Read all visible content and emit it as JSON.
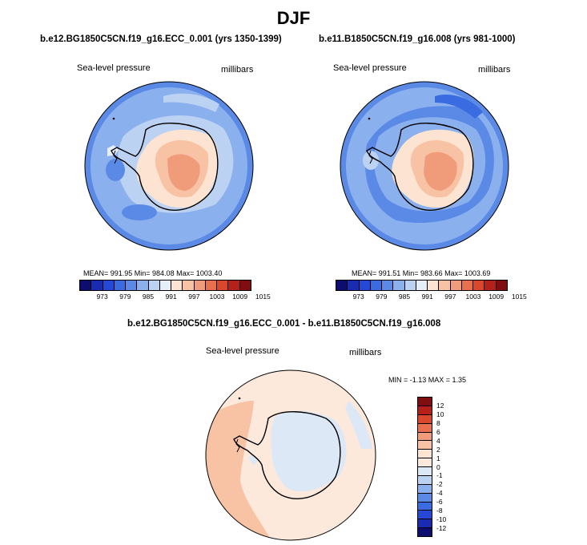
{
  "page": {
    "title": "DJF",
    "diff_title": "b.e12.BG1850C5CN.f19_g16.ECC_0.001 - b.e11.B1850C5CN.f19_g16.008"
  },
  "chart_data": [
    {
      "type": "heatmap",
      "title": "b.e12.BG1850C5CN.f19_g16.ECC_0.001 (yrs 1350-1399)",
      "variable": "Sea-level pressure",
      "units": "millibars",
      "stats": "MEAN= 991.95   Min= 984.08   Max= 1003.40",
      "mean": 991.95,
      "min": 984.08,
      "max": 1003.4,
      "colorbar_ticks": [
        "973",
        "979",
        "985",
        "991",
        "997",
        "1003",
        "1009",
        "1015"
      ]
    },
    {
      "type": "heatmap",
      "title": "b.e11.B1850C5CN.f19_g16.008 (yrs 981-1000)",
      "variable": "Sea-level pressure",
      "units": "millibars",
      "stats": "MEAN= 991.51   Min= 983.66   Max= 1003.69",
      "mean": 991.51,
      "min": 983.66,
      "max": 1003.69,
      "colorbar_ticks": [
        "973",
        "979",
        "985",
        "991",
        "997",
        "1003",
        "1009",
        "1015"
      ]
    },
    {
      "type": "heatmap",
      "title": "b.e12.BG1850C5CN.f19_g16.ECC_0.001 - b.e11.B1850C5CN.f19_g16.008",
      "variable": "Sea-level pressure",
      "units": "millibars",
      "stats": "MIN =  -1.13 MAX =   1.35",
      "min": -1.13,
      "max": 1.35,
      "colorbar_ticks": [
        "12",
        "10",
        "8",
        "6",
        "4",
        "2",
        "1",
        "0",
        "-1",
        "-2",
        "-4",
        "-6",
        "-8",
        "-10",
        "-12"
      ]
    }
  ],
  "colors": {
    "abs_scale": [
      "#0c0d6f",
      "#1b2bb0",
      "#2549d6",
      "#3a6be0",
      "#5a8ae6",
      "#8bb0ee",
      "#bcd2f2",
      "#e6eefa",
      "#fde4d2",
      "#f8c2a4",
      "#f09c7b",
      "#e8704f",
      "#d9482c",
      "#b5201a",
      "#800e10"
    ],
    "diff_scale": [
      "#800e10",
      "#b5201a",
      "#d9482c",
      "#e8704f",
      "#f09c7b",
      "#f8c2a4",
      "#fde4d2",
      "#fde9dc",
      "#dde8f7",
      "#bcd2f2",
      "#8bb0ee",
      "#5a8ae6",
      "#3a6be0",
      "#2549d6",
      "#1b2bb0",
      "#0c0d6f"
    ]
  }
}
